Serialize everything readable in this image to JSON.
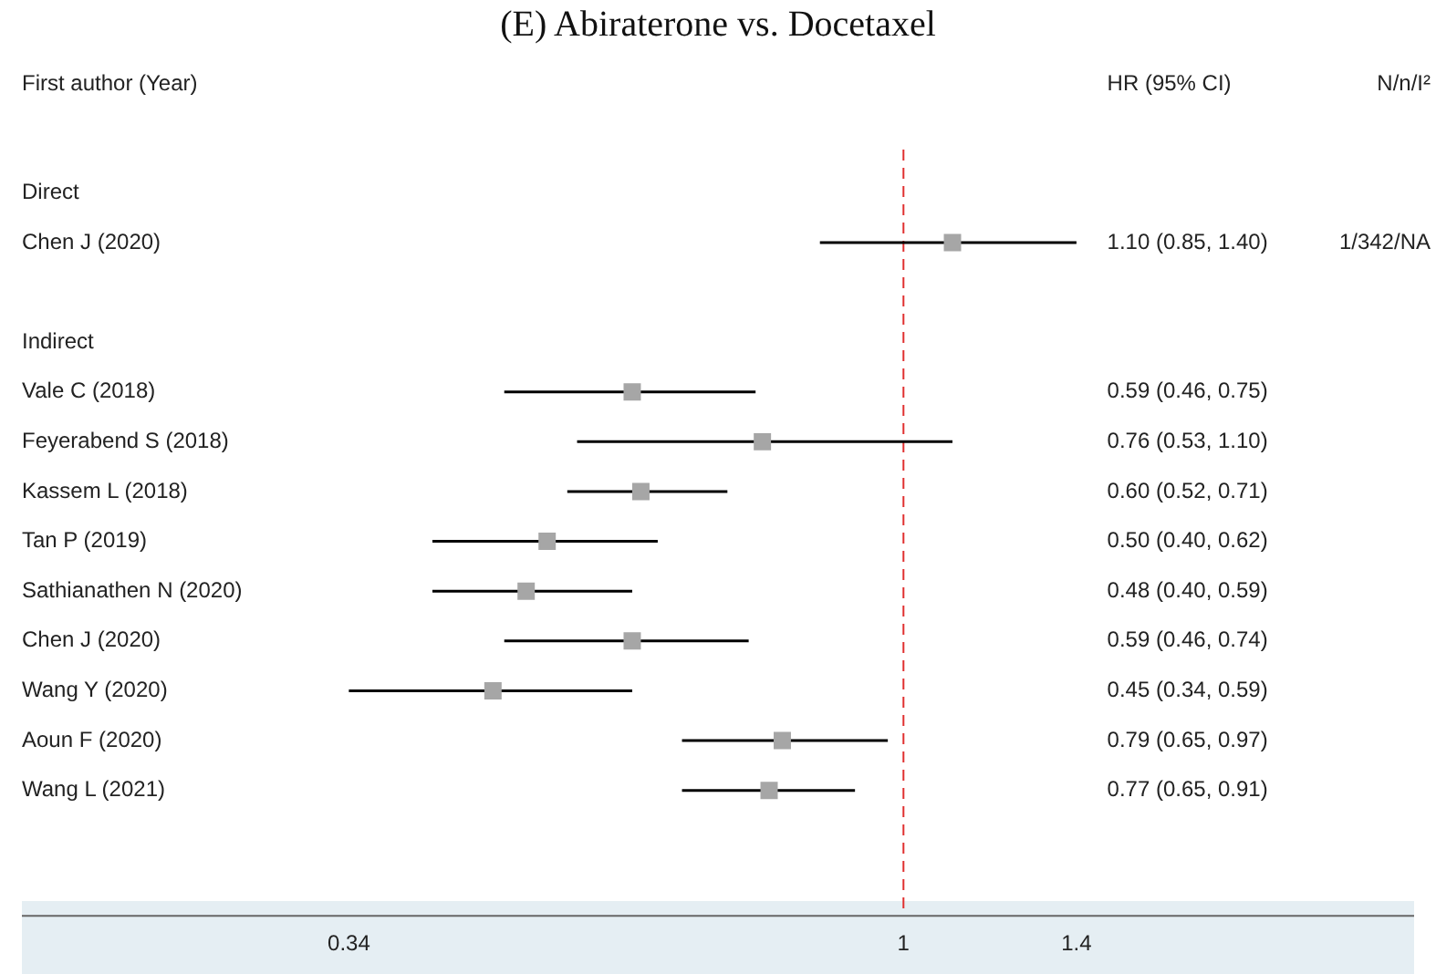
{
  "chart_data": {
    "type": "scatter",
    "title": "(E) Abiraterone vs. Docetaxel",
    "ylabel": "First author (Year)",
    "categories": [
      "Direct",
      "Chen J (2020)",
      null,
      "Indirect",
      "Vale C (2018)",
      "Feyerabend S (2018)",
      "Kassem L (2018)",
      "Tan P (2019)",
      "Sathianathen N (2020)",
      "Chen J (2020)",
      "Wang Y (2020)",
      "Aoun F (2020)",
      "Wang L (2021)",
      null,
      null
    ],
    "values": [
      null,
      1.1,
      null,
      null,
      0.59,
      0.76,
      0.6,
      0.5,
      0.48,
      0.59,
      0.45,
      0.79,
      0.77,
      null,
      null
    ],
    "errors": [
      null,
      [
        0.85,
        1.4
      ],
      null,
      null,
      [
        0.46,
        0.75
      ],
      [
        0.53,
        1.1
      ],
      [
        0.52,
        0.71
      ],
      [
        0.4,
        0.62
      ],
      [
        0.4,
        0.59
      ],
      [
        0.46,
        0.74
      ],
      [
        0.34,
        0.59
      ],
      [
        0.65,
        0.97
      ],
      [
        0.65,
        0.91
      ],
      null,
      null
    ],
    "annotations": [
      "HR (95% CI)",
      "N/n/I²",
      "1.10 (0.85, 1.40)",
      "0.59 (0.46, 0.75)",
      "0.76 (0.53, 1.10)",
      "0.60 (0.52, 0.71)",
      "0.50 (0.40, 0.62)",
      "0.48 (0.40, 0.59)",
      "0.59 (0.46, 0.74)",
      "0.45 (0.34, 0.59)",
      "0.79 (0.65, 0.97)",
      "0.77 (0.65, 0.91)",
      "1/342/NA"
    ],
    "color": "#a6a6a6",
    "marker": "square",
    "orientation": "horizontal",
    "log": "x",
    "grid": false,
    "xlim": [
      0.18,
      2.7
    ],
    "xticks": [
      0.34,
      1,
      1.4
    ],
    "ref_lines": [
      {
        "axis": "x",
        "value": 1,
        "color": "#e03030",
        "line_style": "dashed"
      }
    ]
  }
}
